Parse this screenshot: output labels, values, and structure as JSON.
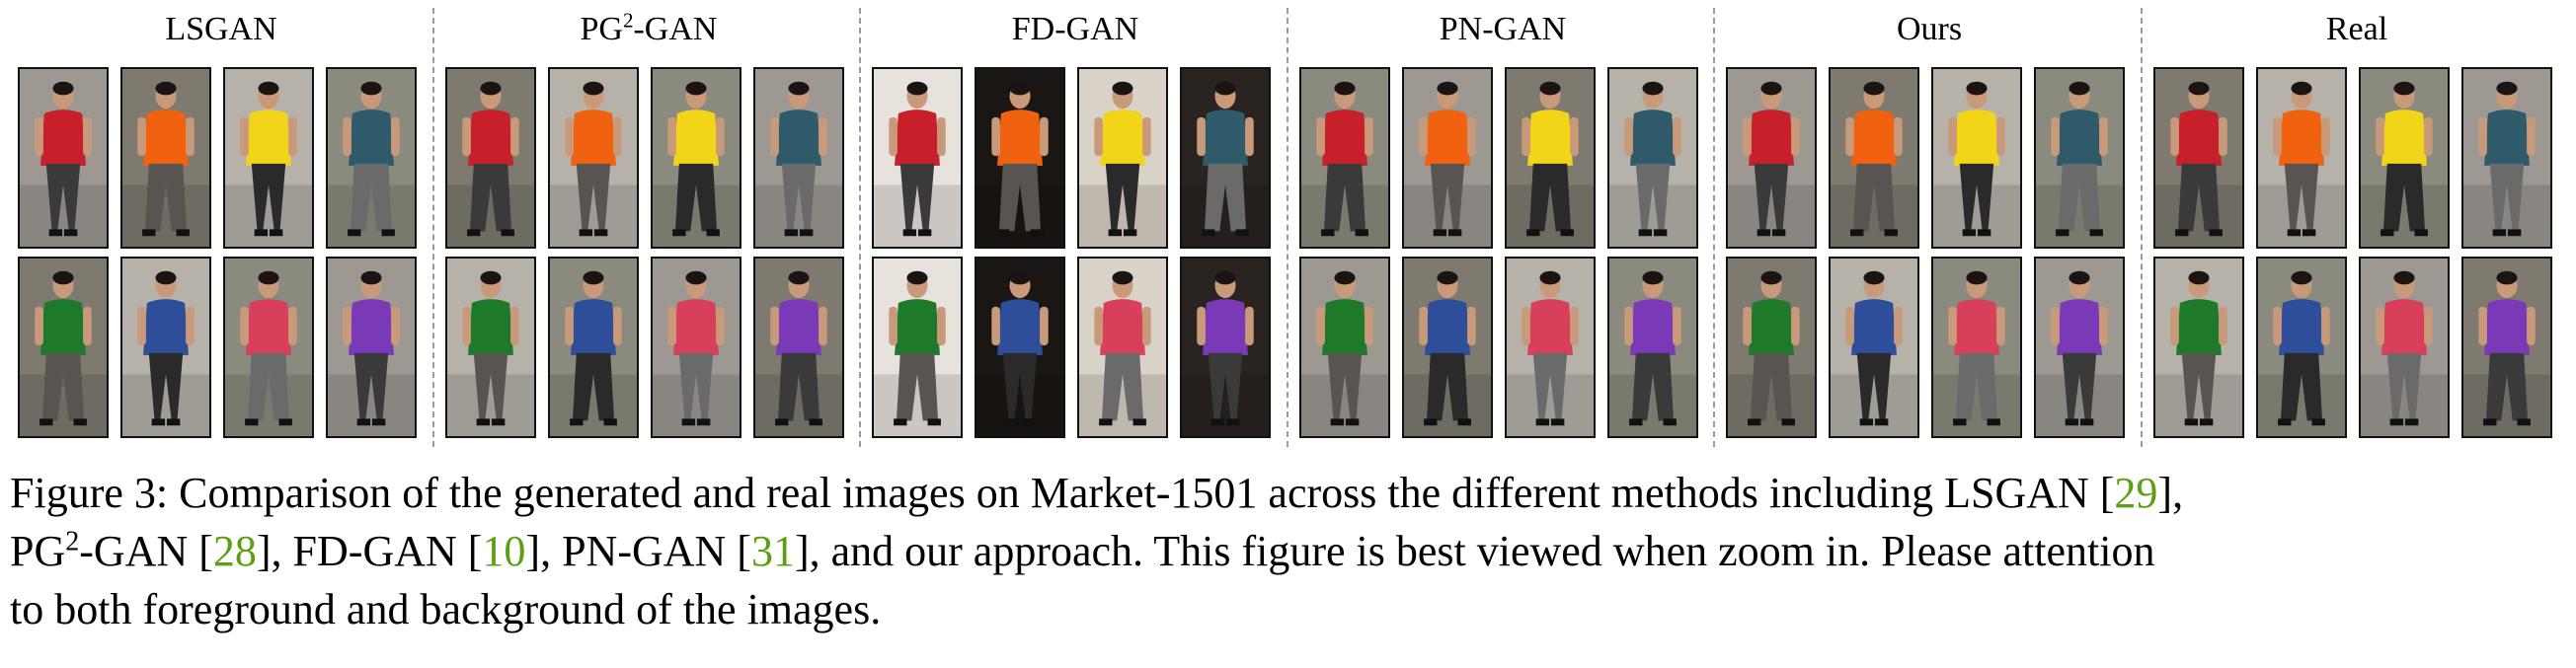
{
  "groups": [
    {
      "title": "LSGAN"
    },
    {
      "title": "PG",
      "title_sup": "2",
      "title_rest": "-GAN"
    },
    {
      "title": "FD-GAN"
    },
    {
      "title": "PN-GAN"
    },
    {
      "title": "Ours"
    },
    {
      "title": "Real"
    }
  ],
  "caption": {
    "l1_pre": "Figure 3: Comparison of the generated and real images on Market-1501 across the different methods including LSGAN [",
    "cite_lsgan": "29",
    "l1_post": "],",
    "l2_pg": "PG",
    "l2_sup": "2",
    "l2_a": "-GAN [",
    "cite_pg2": "28",
    "l2_b": "], FD-GAN [",
    "cite_fd": "10",
    "l2_c": "], PN-GAN [",
    "cite_pn": "31",
    "l2_d": "], and our approach. This figure is best viewed when zoom in. Please attention",
    "l3": "to both foreground and background of the images."
  },
  "colors": {
    "citation": "#5aa012",
    "shirts_row1": [
      "#c8202a",
      "#f0620f",
      "#f2d419",
      "#2e5a6a"
    ],
    "shirts_row2": [
      "#1e7a2a",
      "#2e4e9a",
      "#d8405a",
      "#7a3ab8"
    ]
  }
}
